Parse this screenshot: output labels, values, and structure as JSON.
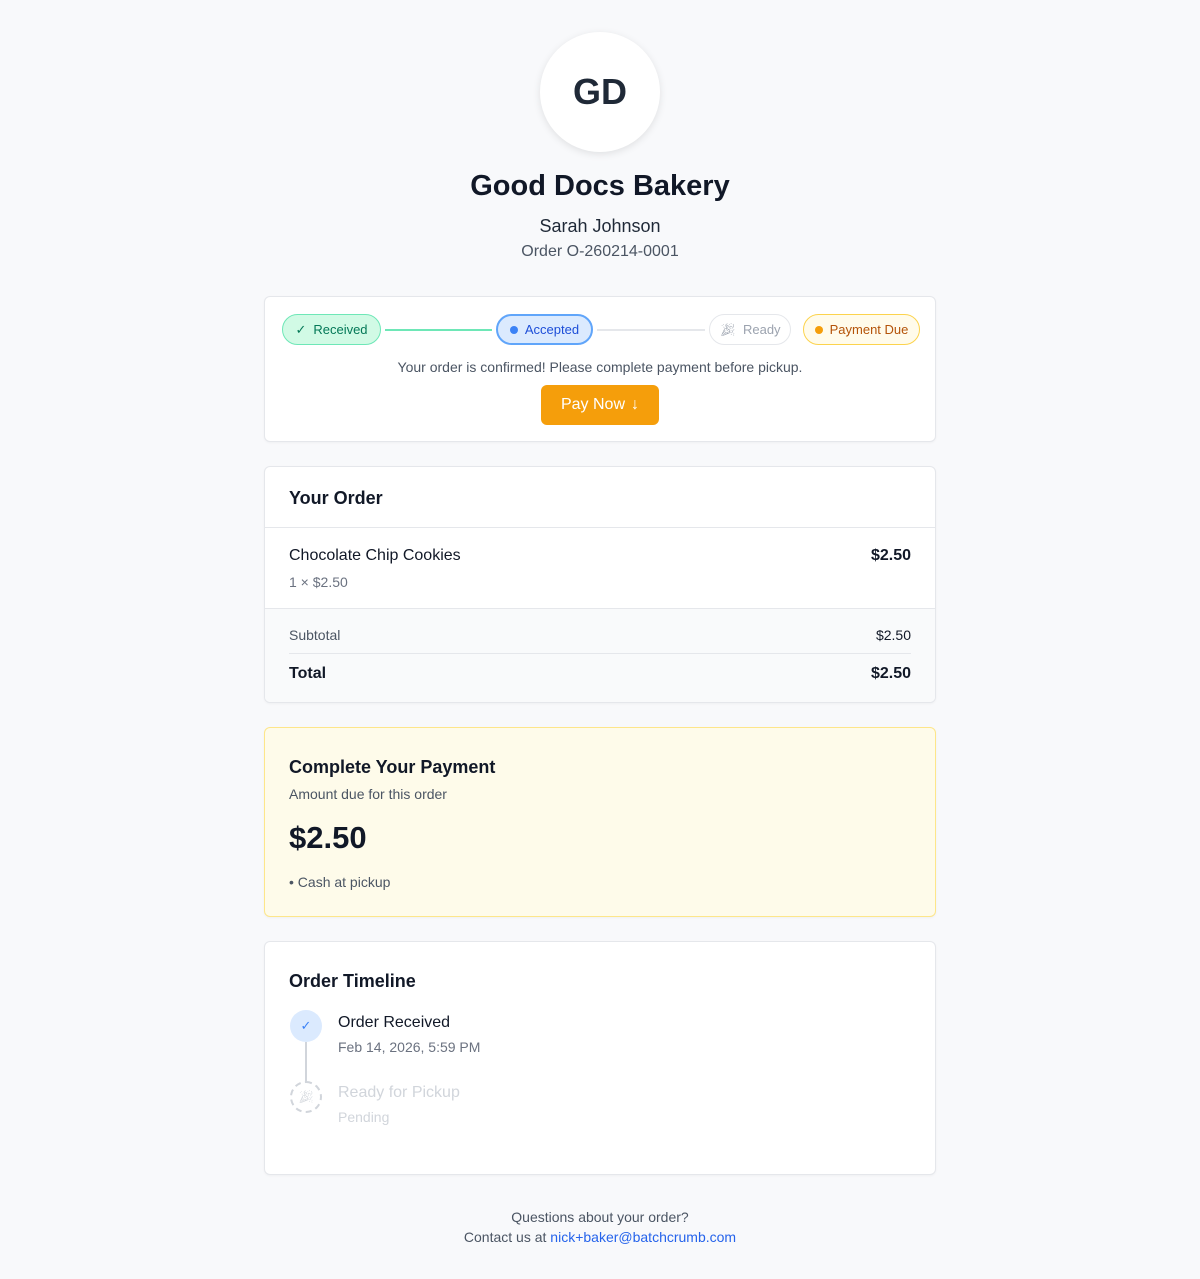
{
  "header": {
    "initials": "GD",
    "business": "Good Docs Bakery",
    "customer": "Sarah Johnson",
    "order_id": "Order O-260214-0001"
  },
  "status": {
    "steps": [
      {
        "label": "Received",
        "state": "done"
      },
      {
        "label": "Accepted",
        "state": "current"
      },
      {
        "label": "Ready",
        "state": "pending"
      },
      {
        "label": "Payment Due",
        "state": "warning"
      }
    ],
    "message": "Your order is confirmed! Please complete payment before pickup.",
    "pay_label": "Pay Now",
    "pay_icon": "↓"
  },
  "order": {
    "title": "Your Order",
    "items": [
      {
        "name": "Chocolate Chip Cookies",
        "qty_line": "1 × $2.50",
        "price": "$2.50"
      }
    ],
    "subtotal_label": "Subtotal",
    "subtotal": "$2.50",
    "total_label": "Total",
    "total": "$2.50"
  },
  "payment": {
    "title": "Complete Your Payment",
    "subtitle": "Amount due for this order",
    "amount": "$2.50",
    "method": "• Cash at pickup"
  },
  "timeline": {
    "title": "Order Timeline",
    "events": [
      {
        "title": "Order Received",
        "time": "Feb 14, 2026, 5:59 PM"
      },
      {
        "title": "Ready for Pickup",
        "time": "Pending"
      }
    ]
  },
  "footer": {
    "question": "Questions about your order?",
    "contact_prefix": "Contact us at ",
    "email": "nick+baker@batchcrumb.com"
  }
}
